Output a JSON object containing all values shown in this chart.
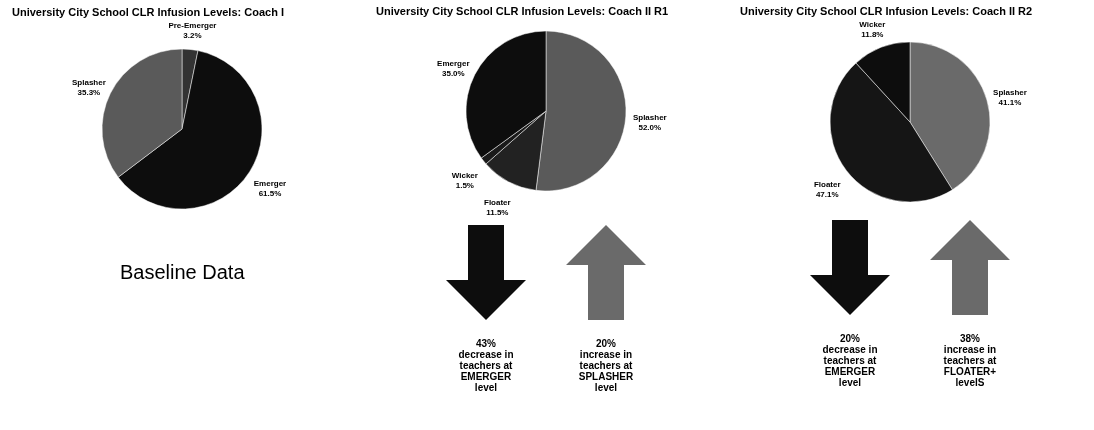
{
  "chart_data": [
    {
      "type": "pie",
      "title": "University City School CLR Infusion Levels: Coach I",
      "categories": [
        "Pre-Emerger",
        "Emerger",
        "Splasher"
      ],
      "values": [
        3.2,
        61.5,
        35.3
      ],
      "value_labels": [
        "3.2%",
        "61.5%",
        "35.3%"
      ],
      "colors": [
        "#333333",
        "#0d0d0d",
        "#5a5a5a"
      ],
      "annotations": [
        "Baseline Data"
      ]
    },
    {
      "type": "pie",
      "title": "University City School CLR Infusion Levels: Coach II R1",
      "categories": [
        "Splasher",
        "Floater",
        "Wicker",
        "Emerger"
      ],
      "values": [
        52.0,
        11.5,
        1.5,
        35.0
      ],
      "value_labels": [
        "52.0%",
        "11.5%",
        "1.5%",
        "35.0%"
      ],
      "colors": [
        "#5a5a5a",
        "#222222",
        "#1a1a1a",
        "#0d0d0d"
      ],
      "annotations": [
        "43%\ndecrease in\nteachers at\nEMERGER\nlevel",
        "20%\nincrease in\nteachers at\nSPLASHER\nlevel"
      ]
    },
    {
      "type": "pie",
      "title": "University City School CLR Infusion Levels: Coach II R2",
      "categories": [
        "Splasher",
        "Floater",
        "Wicker"
      ],
      "values": [
        41.1,
        47.1,
        11.8
      ],
      "value_labels": [
        "41.1%",
        "47.1%",
        "11.8%"
      ],
      "colors": [
        "#6a6a6a",
        "#151515",
        "#0d0d0d"
      ],
      "annotations": [
        "20%\ndecrease in\nteachers at\nEMERGER\nlevel",
        "38%\nincrease in\nteachers at\nFLOATER+\nlevelS"
      ]
    }
  ]
}
